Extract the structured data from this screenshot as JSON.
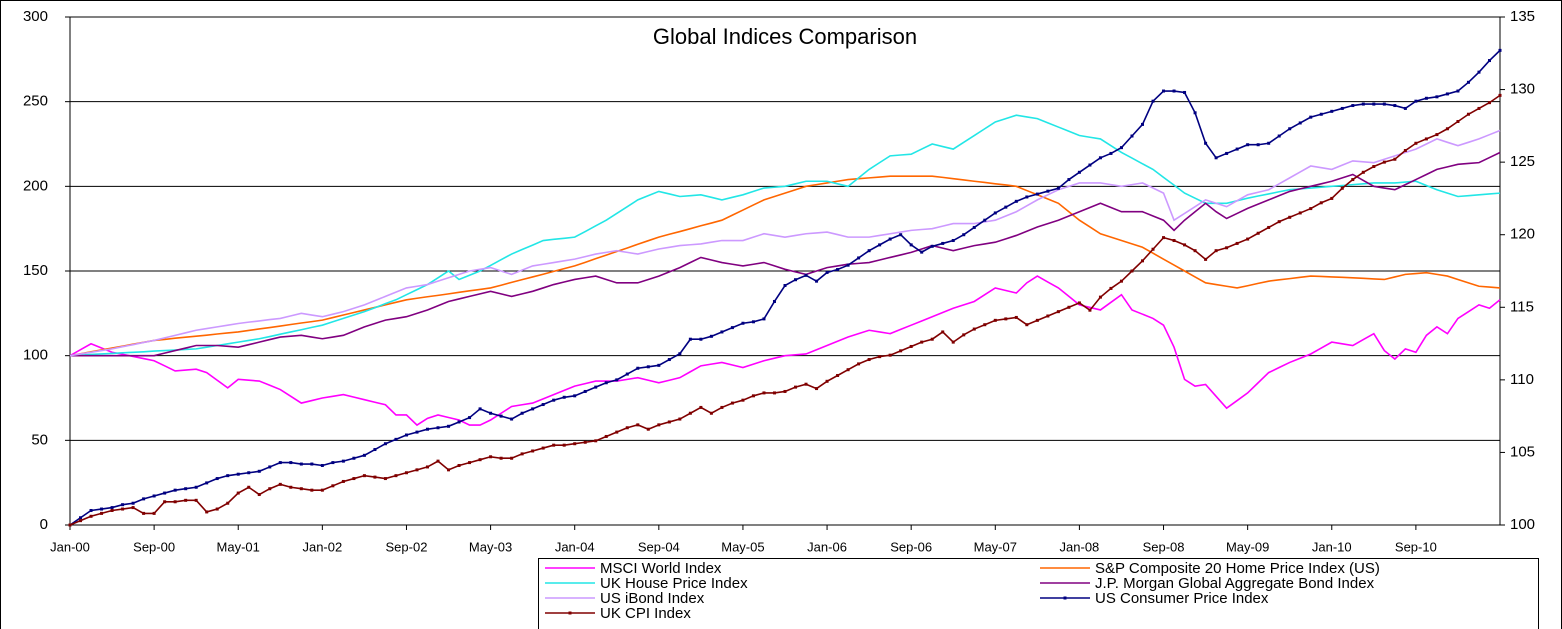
{
  "chart_data": {
    "type": "line",
    "title": "Global Indices Comparison",
    "categories": [
      "Jan-00",
      null,
      null,
      null,
      null,
      null,
      null,
      null,
      "Sep-00",
      null,
      null,
      null,
      null,
      null,
      null,
      null,
      "May-01",
      null,
      null,
      null,
      null,
      null,
      null,
      null,
      "Jan-02",
      null,
      null,
      null,
      null,
      null,
      null,
      null,
      "Sep-02",
      null,
      null,
      null,
      null,
      null,
      null,
      null,
      "May-03",
      null,
      null,
      null,
      null,
      null,
      null,
      null,
      "Jan-04",
      null,
      null,
      null,
      null,
      null,
      null,
      null,
      "Sep-04",
      null,
      null,
      null,
      null,
      null,
      null,
      null,
      "May-05",
      null,
      null,
      null,
      null,
      null,
      null,
      null,
      "Jan-06",
      null,
      null,
      null,
      null,
      null,
      null,
      null,
      "Sep-06",
      null,
      null,
      null,
      null,
      null,
      null,
      null,
      "May-07",
      null,
      null,
      null,
      null,
      null,
      null,
      null,
      "Jan-08",
      null,
      null,
      null,
      null,
      null,
      null,
      null,
      "Sep-08",
      null,
      null,
      null,
      null,
      null,
      null,
      null,
      "May-09",
      null,
      null,
      null,
      null,
      null,
      null,
      null,
      "Jan-10",
      null,
      null,
      null,
      null,
      null,
      null,
      null,
      "Sep-10",
      null,
      null,
      null,
      null,
      null,
      null,
      null,
      null
    ],
    "ylim": [
      0,
      300
    ],
    "yticks": [
      0,
      50,
      100,
      150,
      200,
      250,
      300
    ],
    "y2lim": [
      100,
      135
    ],
    "y2ticks": [
      100,
      105,
      110,
      115,
      120,
      125,
      130,
      135
    ],
    "grid": true,
    "legend": "bottom",
    "series": [
      {
        "name": "MSCI World Index",
        "color": "#ff00ff",
        "values": [
          100,
          103.5,
          107,
          104.5,
          102,
          100.8,
          99.5,
          98.3,
          97,
          94,
          91,
          91.5,
          92,
          90,
          85.5,
          81,
          86,
          85.5,
          85,
          82.5,
          80,
          76,
          72,
          73.5,
          75,
          76,
          77,
          75.5,
          74,
          72.5,
          71,
          65,
          65,
          59,
          63,
          65,
          63.5,
          62,
          59,
          59,
          62,
          66,
          70,
          71,
          72,
          74.5,
          77,
          79.5,
          82,
          83.5,
          85,
          85,
          85,
          86,
          87,
          85.5,
          84,
          85.5,
          87,
          90.5,
          94,
          95,
          96,
          94.5,
          93,
          95,
          97,
          98.5,
          100,
          100.5,
          101,
          103.5,
          106,
          108.5,
          111,
          113,
          115,
          114,
          113,
          115.5,
          118,
          120.5,
          123,
          125.5,
          128,
          130,
          132,
          136,
          140,
          138.5,
          137,
          143,
          147,
          143.5,
          140,
          135,
          130,
          128.5,
          127,
          131.5,
          136,
          127,
          124.5,
          122,
          118,
          105,
          86,
          82,
          83,
          76,
          69,
          73.5,
          78,
          84,
          90,
          93,
          96,
          98.5,
          101,
          104.5,
          108,
          107,
          106,
          109.5,
          113,
          103,
          98,
          104,
          102,
          112,
          117,
          113,
          122,
          126,
          130,
          128,
          133
        ]
      },
      {
        "name": "S&P Composite 20 Home Price Index (US)",
        "color": "#ff6600",
        "values": [
          100,
          101.1,
          102.3,
          103.4,
          104.5,
          105.6,
          106.8,
          107.9,
          109,
          109.6,
          110.3,
          110.9,
          111.5,
          112.1,
          112.8,
          113.4,
          114,
          114.9,
          115.8,
          116.6,
          117.5,
          118.4,
          119.3,
          120.1,
          121,
          122.5,
          124,
          125.5,
          127,
          128.5,
          130,
          131.5,
          133,
          133.9,
          134.8,
          135.6,
          136.5,
          137.4,
          138.3,
          139.1,
          140,
          141.6,
          143.3,
          144.9,
          146.5,
          148.1,
          149.8,
          151.4,
          153,
          155.1,
          157.3,
          159.4,
          161.5,
          163.6,
          165.8,
          167.9,
          170,
          171.7,
          173.3,
          175,
          176.7,
          178.3,
          180,
          183,
          186,
          189,
          192,
          194,
          196,
          198,
          200,
          201,
          202,
          203,
          204,
          204.5,
          205,
          205.5,
          206,
          206,
          206,
          206,
          206,
          205.3,
          204.5,
          203.8,
          203,
          202.3,
          201.5,
          200.8,
          200,
          197.5,
          195,
          192.5,
          190,
          185,
          180,
          176,
          172,
          170,
          168,
          166,
          164,
          160.5,
          157,
          153.5,
          150,
          146.5,
          143,
          142,
          141,
          140,
          141.3,
          142.7,
          144,
          144.8,
          145.5,
          146.3,
          147,
          146.8,
          146.5,
          146.3,
          146,
          145.7,
          145.3,
          145,
          146.5,
          148,
          148.5,
          149,
          148,
          147,
          145,
          143,
          141,
          140.5,
          140
        ]
      },
      {
        "name": "UK House Price Index",
        "color": "#22e6e6",
        "values": [
          100,
          100.3,
          100.7,
          101,
          101.3,
          101.7,
          102,
          102.3,
          102.7,
          103,
          103.3,
          103.7,
          104,
          105,
          106,
          107,
          108,
          109,
          110,
          111.3,
          112.7,
          114,
          115.3,
          116.7,
          118,
          120,
          122,
          124,
          126,
          128.3,
          130.7,
          133,
          136,
          139,
          142,
          146,
          150,
          145,
          147.5,
          150,
          153.3,
          156.7,
          160,
          162.7,
          165.3,
          168,
          168.7,
          169.3,
          170,
          173.3,
          176.7,
          180,
          184,
          188,
          192,
          194.5,
          197,
          195.5,
          194,
          194.5,
          195,
          193.5,
          192,
          193.5,
          195,
          197,
          199,
          199.5,
          200,
          201.5,
          203,
          203,
          203,
          201.5,
          200,
          205,
          210,
          214,
          218,
          218.5,
          219,
          222,
          225,
          223.5,
          222,
          226,
          230,
          234,
          238,
          240,
          242,
          241,
          240,
          237.5,
          235,
          232.5,
          230,
          229,
          228,
          224,
          220,
          216.7,
          213.3,
          210,
          205.3,
          200.7,
          196,
          193,
          190,
          190,
          190,
          191.5,
          193,
          194.3,
          195.5,
          196.8,
          198,
          198.5,
          199,
          199.5,
          200,
          200.5,
          201,
          201.5,
          202,
          202,
          202,
          202.5,
          203,
          200.5,
          198,
          196,
          194,
          194.5,
          195,
          195.5,
          196
        ]
      },
      {
        "name": "J.P. Morgan Global Aggregate Bond Index",
        "color": "#800080",
        "values": [
          100,
          100,
          100,
          100,
          100,
          100,
          100,
          100,
          100,
          101.5,
          103,
          104.5,
          106,
          106,
          106,
          105.5,
          105,
          106.5,
          108,
          109.5,
          111,
          111.5,
          112,
          111,
          110,
          111,
          112,
          114.5,
          117,
          119,
          121,
          122,
          123,
          125,
          127,
          129.5,
          132,
          133.5,
          135,
          136.5,
          138,
          136.5,
          135,
          136.5,
          138,
          140,
          142,
          143.5,
          145,
          146,
          147,
          145,
          143,
          143,
          143,
          145,
          147,
          149.5,
          152,
          155,
          158,
          156.5,
          155,
          154,
          153,
          154,
          155,
          153,
          151,
          149.5,
          148,
          150,
          152,
          153,
          154,
          154.5,
          155,
          156.5,
          158,
          159.5,
          161,
          163,
          165,
          163.5,
          162,
          163.5,
          165,
          166,
          167,
          169,
          171,
          173.5,
          176,
          178,
          180,
          182.5,
          185,
          187.5,
          190,
          187.5,
          185,
          185,
          185,
          182.5,
          180,
          174,
          180,
          185,
          190,
          185,
          181,
          184,
          187,
          189.5,
          192,
          194.5,
          197,
          198.5,
          200,
          201.5,
          203,
          205,
          207,
          203.5,
          200,
          199,
          198,
          201,
          204,
          207,
          210,
          211.5,
          213,
          213.5,
          214,
          217,
          220
        ]
      },
      {
        "name": "US iBond Index",
        "color": "#cc99ff",
        "values": [
          100,
          101,
          102,
          103,
          104,
          105.3,
          106.5,
          107.8,
          109,
          110.5,
          112,
          113.5,
          115,
          116,
          117,
          118,
          119,
          119.8,
          120.5,
          121.3,
          122,
          123.5,
          125,
          124,
          123,
          124.5,
          126,
          128,
          130,
          132.5,
          135,
          137.5,
          140,
          141,
          142,
          144,
          146,
          148,
          150,
          151,
          152,
          150,
          148,
          150.5,
          153,
          154,
          155,
          156,
          157,
          158.5,
          160,
          161,
          162,
          161,
          160,
          161.5,
          163,
          164,
          165,
          165.5,
          166,
          167,
          168,
          168,
          168,
          170,
          172,
          171,
          170,
          171,
          172,
          172.5,
          173,
          171.5,
          170,
          170,
          170,
          171,
          172,
          173,
          174,
          174.5,
          175,
          176.5,
          178,
          178,
          178,
          179,
          180,
          182.5,
          185,
          188.5,
          192,
          195,
          198,
          200,
          202,
          202,
          202,
          201,
          200,
          201,
          202,
          199,
          196,
          180,
          184,
          188,
          192,
          190,
          188,
          191.5,
          195,
          196.5,
          198,
          201.5,
          205,
          208.5,
          212,
          211,
          210,
          212.5,
          215,
          214.5,
          214,
          216,
          218,
          220,
          222,
          225,
          228,
          226,
          224,
          226,
          228,
          230.5,
          233
        ]
      },
      {
        "name": "US Consumer Price Index",
        "color": "#000080",
        "axis": "y2",
        "marker": "square",
        "values": [
          100,
          100.5,
          101,
          101.1,
          101.2,
          101.4,
          101.5,
          101.8,
          102,
          102.2,
          102.4,
          102.5,
          102.6,
          102.9,
          103.2,
          103.4,
          103.5,
          103.6,
          103.7,
          104,
          104.3,
          104.3,
          104.2,
          104.2,
          104.1,
          104.3,
          104.4,
          104.6,
          104.8,
          105.2,
          105.6,
          105.9,
          106.2,
          106.4,
          106.6,
          106.7,
          106.8,
          107.1,
          107.4,
          108,
          107.7,
          107.5,
          107.3,
          107.7,
          108,
          108.3,
          108.6,
          108.8,
          108.9,
          109.2,
          109.5,
          109.8,
          110,
          110.4,
          110.8,
          110.9,
          111,
          111.4,
          111.8,
          112.8,
          112.8,
          113,
          113.3,
          113.6,
          113.9,
          114,
          114.2,
          115.4,
          116.5,
          116.9,
          117.2,
          116.8,
          117.4,
          117.6,
          117.9,
          118.4,
          118.9,
          119.3,
          119.7,
          120,
          119.3,
          118.8,
          119.2,
          119.4,
          119.6,
          120,
          120.5,
          121,
          121.5,
          121.9,
          122.3,
          122.6,
          122.8,
          123,
          123.2,
          123.8,
          124.3,
          124.8,
          125.3,
          125.6,
          126,
          126.8,
          127.6,
          129.2,
          129.9,
          129.9,
          129.8,
          128.4,
          126.3,
          125.3,
          125.6,
          125.9,
          126.2,
          126.2,
          126.3,
          126.8,
          127.3,
          127.7,
          128.1,
          128.3,
          128.5,
          128.7,
          128.9,
          129,
          129,
          129,
          128.9,
          128.7,
          129.2,
          129.4,
          129.5,
          129.7,
          129.9,
          130.5,
          131.2,
          132,
          132.7
        ]
      },
      {
        "name": "UK CPI Index",
        "color": "#800000",
        "axis": "y2",
        "marker": "square",
        "values": [
          100,
          100.3,
          100.6,
          100.8,
          101,
          101.1,
          101.2,
          100.8,
          100.8,
          101.6,
          101.6,
          101.7,
          101.7,
          100.9,
          101.1,
          101.5,
          102.2,
          102.6,
          102.1,
          102.5,
          102.8,
          102.6,
          102.5,
          102.4,
          102.4,
          102.7,
          103,
          103.2,
          103.4,
          103.3,
          103.2,
          103.4,
          103.6,
          103.8,
          104,
          104.4,
          103.8,
          104.1,
          104.3,
          104.5,
          104.7,
          104.6,
          104.6,
          104.9,
          105.1,
          105.3,
          105.5,
          105.5,
          105.6,
          105.7,
          105.8,
          106.1,
          106.4,
          106.7,
          106.9,
          106.6,
          106.9,
          107.1,
          107.3,
          107.7,
          108.1,
          107.7,
          108.1,
          108.4,
          108.6,
          108.9,
          109.1,
          109.1,
          109.2,
          109.5,
          109.7,
          109.4,
          109.9,
          110.3,
          110.7,
          111.1,
          111.4,
          111.6,
          111.7,
          112,
          112.3,
          112.6,
          112.8,
          113.3,
          112.6,
          113.1,
          113.5,
          113.8,
          114.1,
          114.2,
          114.3,
          113.8,
          114.1,
          114.4,
          114.7,
          115,
          115.3,
          114.8,
          115.7,
          116.3,
          116.8,
          117.5,
          118.2,
          119,
          119.8,
          119.6,
          119.3,
          118.9,
          118.3,
          118.9,
          119.1,
          119.4,
          119.7,
          120.1,
          120.5,
          120.9,
          121.2,
          121.5,
          121.8,
          122.2,
          122.5,
          123.2,
          123.8,
          124.3,
          124.7,
          125,
          125.2,
          125.8,
          126.3,
          126.6,
          126.9,
          127.3,
          127.8,
          128.3,
          128.7,
          129.1,
          129.6
        ]
      }
    ]
  }
}
